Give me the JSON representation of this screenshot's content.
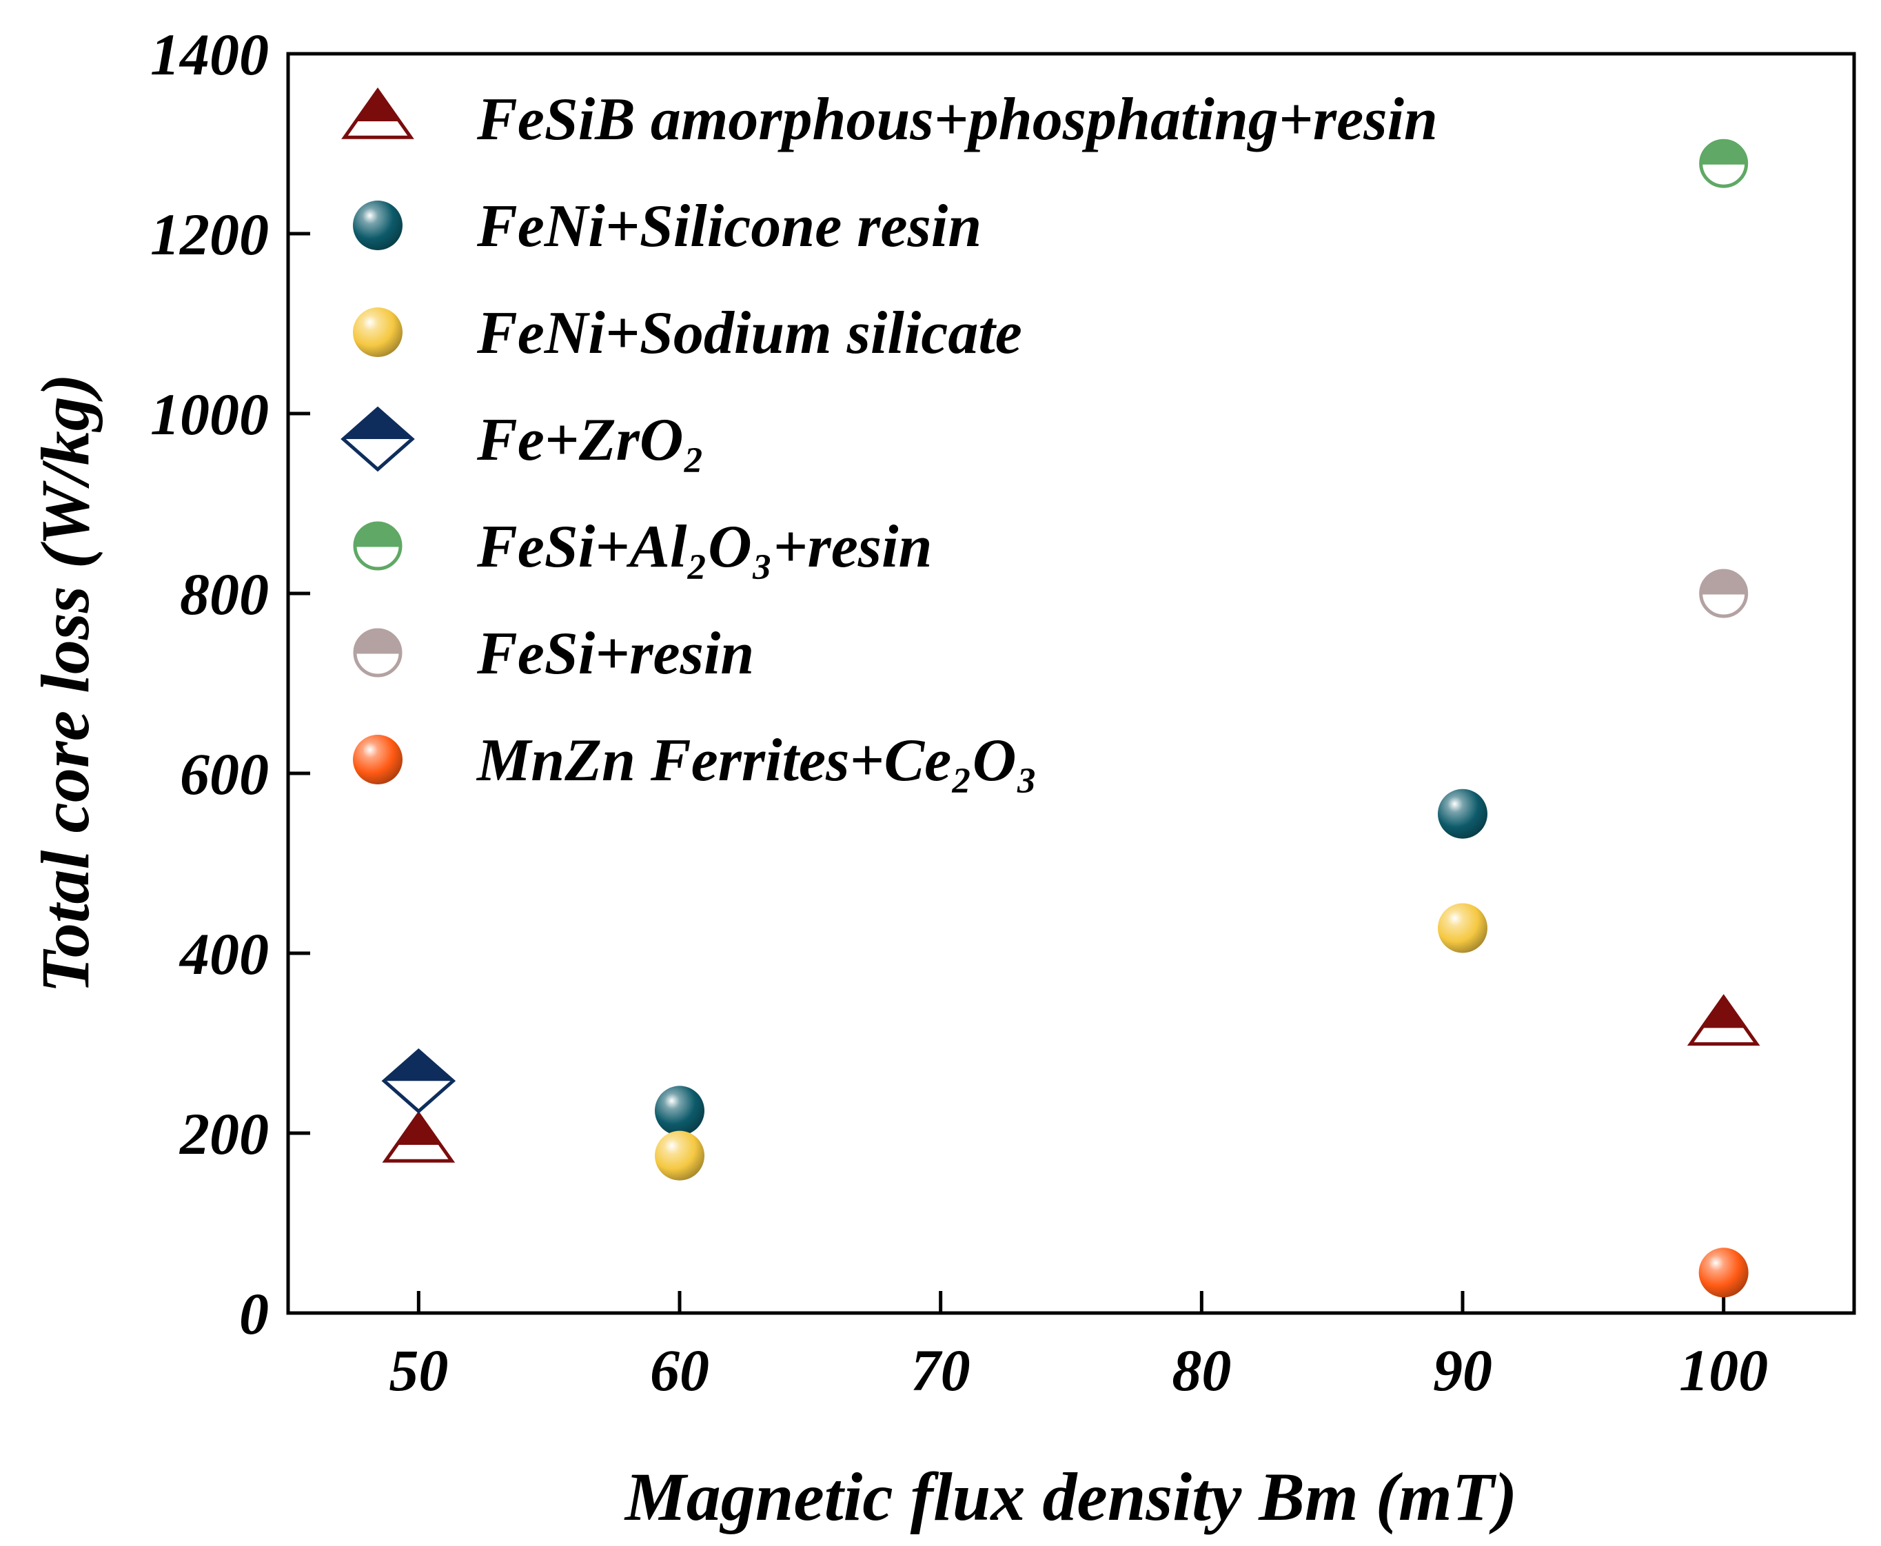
{
  "chart_data": {
    "type": "scatter",
    "xlabel": "Magnetic flux density Bm (mT)",
    "ylabel": "Total core loss (W/kg)",
    "xlim": [
      45,
      105
    ],
    "ylim": [
      0,
      1400
    ],
    "xticks": [
      50,
      60,
      70,
      80,
      90,
      100
    ],
    "yticks": [
      0,
      200,
      400,
      600,
      800,
      1000,
      1200,
      1400
    ],
    "grid": false,
    "legend_position": "top-left",
    "series": [
      {
        "name": "FeSiB amorphous+phosphating+resin",
        "marker": "half-triangle",
        "color": "#7a0c0c",
        "points": [
          {
            "x": 50,
            "y": 190
          },
          {
            "x": 100,
            "y": 320
          }
        ]
      },
      {
        "name": "FeNi+Silicone resin",
        "marker": "sphere",
        "color": "#0d5a6a",
        "points": [
          {
            "x": 60,
            "y": 225
          },
          {
            "x": 90,
            "y": 555
          }
        ]
      },
      {
        "name": "FeNi+Sodium silicate",
        "marker": "sphere",
        "color": "#f5c842",
        "points": [
          {
            "x": 60,
            "y": 175
          },
          {
            "x": 90,
            "y": 428
          }
        ]
      },
      {
        "name": "Fe+ZrO₂",
        "marker": "half-diamond",
        "color": "#0e2d5c",
        "points": [
          {
            "x": 50,
            "y": 258
          }
        ]
      },
      {
        "name": "FeSi+Al₂O₃+resin",
        "marker": "half-circle",
        "color": "#5fa865",
        "points": [
          {
            "x": 100,
            "y": 1278
          }
        ]
      },
      {
        "name": "FeSi+resin",
        "marker": "half-circle",
        "color": "#b4a2a2",
        "points": [
          {
            "x": 100,
            "y": 800
          }
        ]
      },
      {
        "name": "MnZn Ferrites+Ce₂O₃",
        "marker": "sphere",
        "color": "#ff5a14",
        "points": [
          {
            "x": 100,
            "y": 45
          }
        ]
      }
    ]
  }
}
